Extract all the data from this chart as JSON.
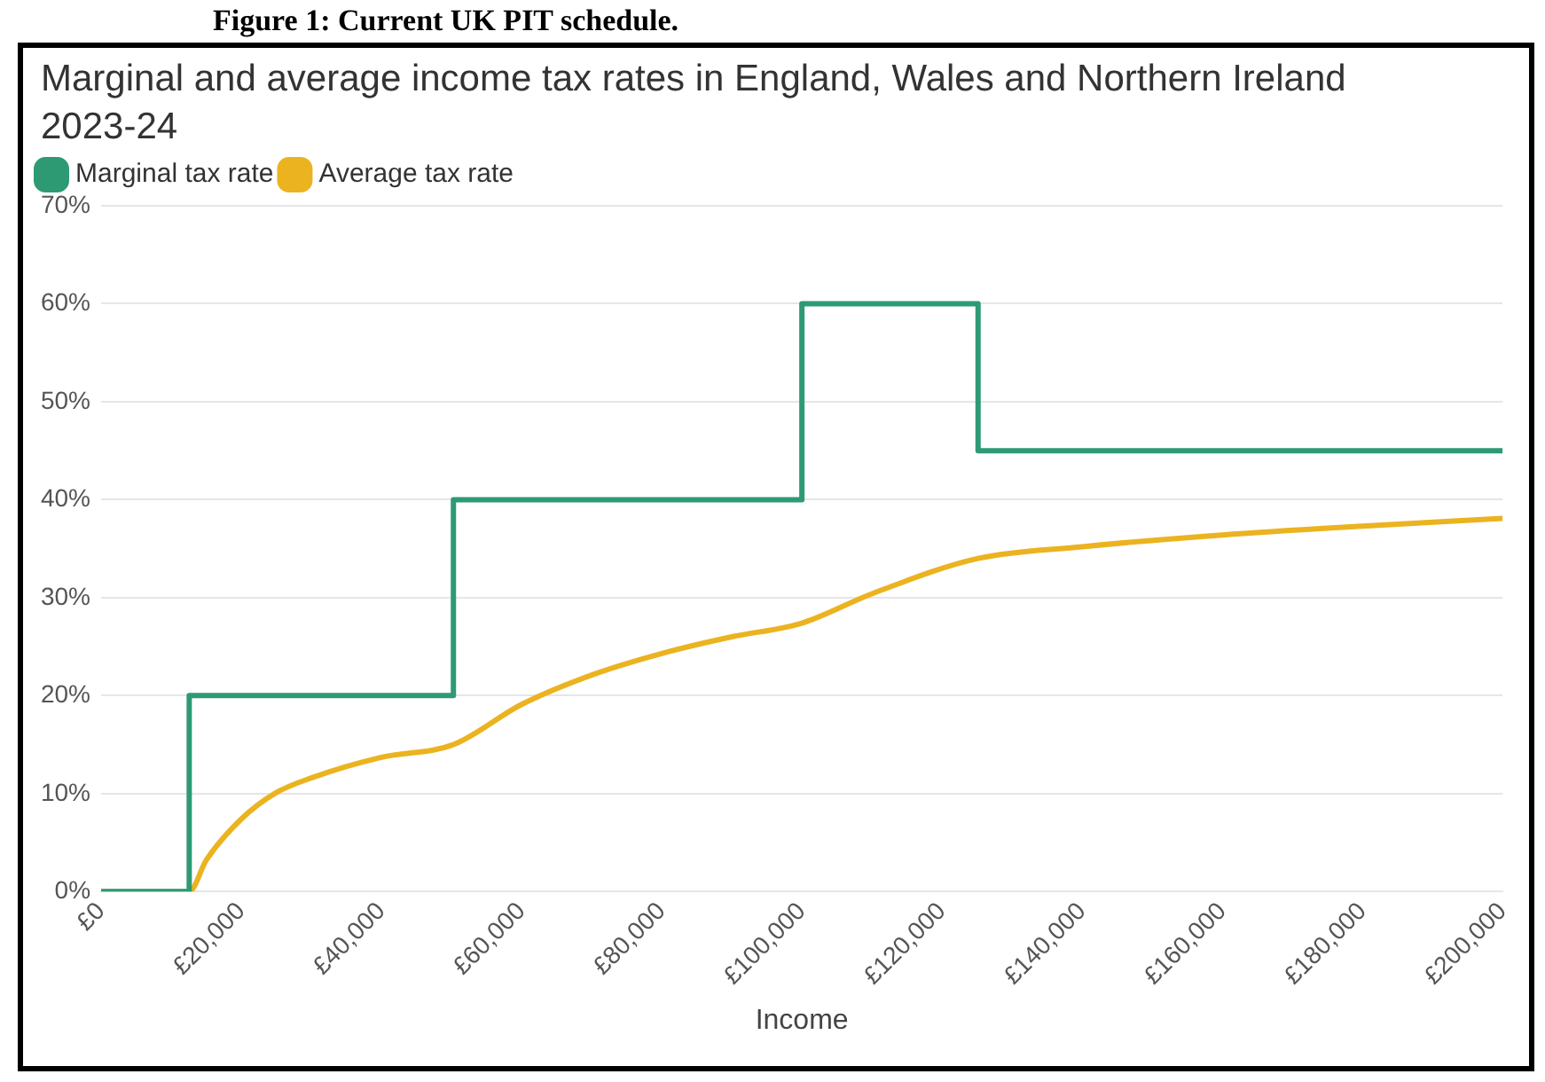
{
  "chart_data": {
    "type": "line",
    "title": "Marginal and average income tax rates in England, Wales and Northern Ireland 2023-24",
    "xlabel": "Income",
    "annotations": [
      "Figure 1: Current UK PIT schedule."
    ],
    "series": [
      {
        "name": "Marginal tax rate",
        "type": "step",
        "color": "#2e9a74",
        "x": [
          0,
          12570,
          50270,
          100000,
          125140,
          200000
        ],
        "values": [
          0,
          20,
          40,
          60,
          45,
          45
        ]
      },
      {
        "name": "Average tax rate",
        "type": "line",
        "color": "#ebb320",
        "x": [
          0,
          12570,
          15000,
          20000,
          25000,
          30000,
          40000,
          50270,
          60000,
          70000,
          80000,
          90000,
          100000,
          110000,
          125140,
          140000,
          160000,
          180000,
          200000
        ],
        "values": [
          0,
          0,
          3.2,
          7.4,
          10.1,
          11.6,
          13.7,
          15.0,
          19.1,
          22.1,
          24.3,
          26.0,
          27.4,
          30.4,
          34.0,
          35.2,
          36.4,
          37.3,
          38.1
        ]
      }
    ],
    "xlim": [
      0,
      200000
    ],
    "xticks": [
      {
        "value": 0,
        "label": "£0"
      },
      {
        "value": 20000,
        "label": "£20,000"
      },
      {
        "value": 40000,
        "label": "£40,000"
      },
      {
        "value": 60000,
        "label": "£60,000"
      },
      {
        "value": 80000,
        "label": "£80,000"
      },
      {
        "value": 100000,
        "label": "£100,000"
      },
      {
        "value": 120000,
        "label": "£120,000"
      },
      {
        "value": 140000,
        "label": "£140,000"
      },
      {
        "value": 160000,
        "label": "£160,000"
      },
      {
        "value": 180000,
        "label": "£180,000"
      },
      {
        "value": 200000,
        "label": "£200,000"
      }
    ],
    "ylim": [
      0,
      70
    ],
    "yticks": [
      {
        "value": 0,
        "label": "0%"
      },
      {
        "value": 10,
        "label": "10%"
      },
      {
        "value": 20,
        "label": "20%"
      },
      {
        "value": 30,
        "label": "30%"
      },
      {
        "value": 40,
        "label": "40%"
      },
      {
        "value": 50,
        "label": "50%"
      },
      {
        "value": 60,
        "label": "60%"
      },
      {
        "value": 70,
        "label": "70%"
      }
    ],
    "grid": "y",
    "legend": "top left",
    "marker": "none"
  }
}
